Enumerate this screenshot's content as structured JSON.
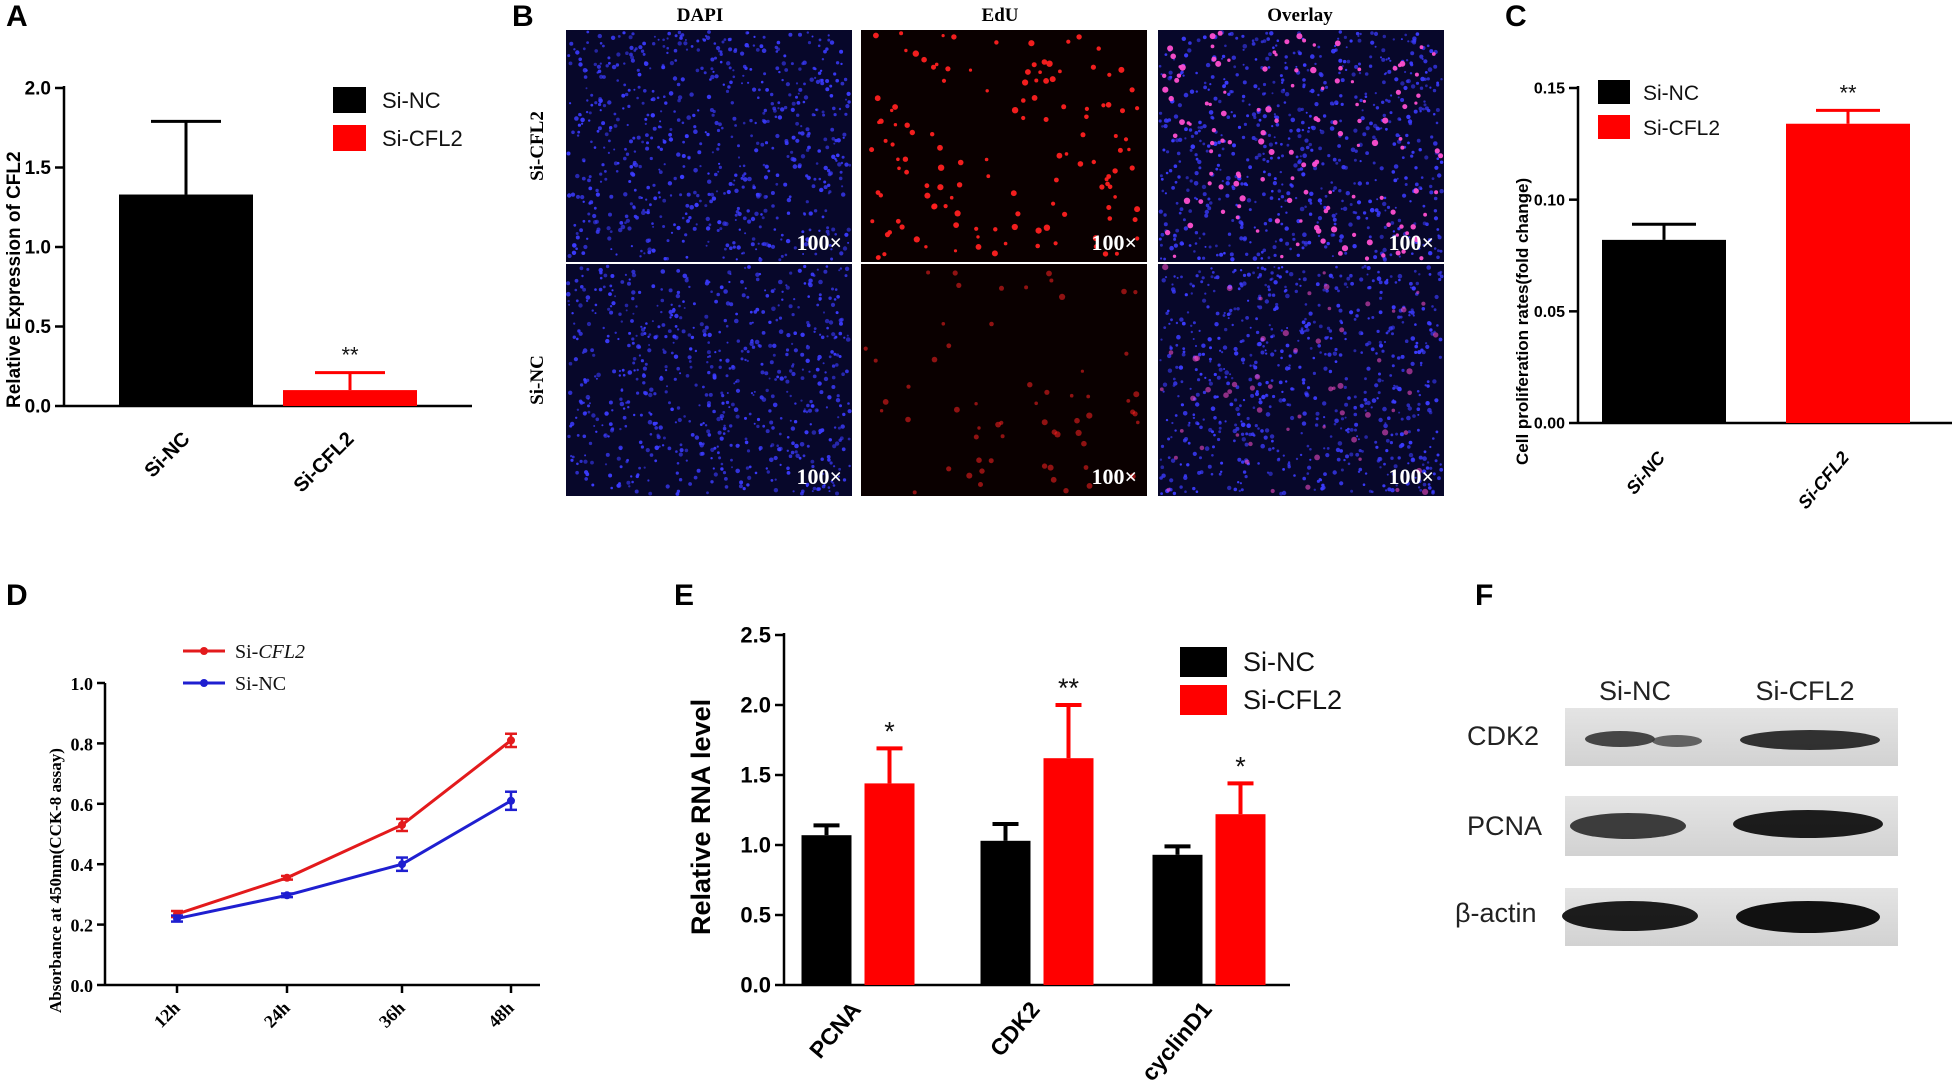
{
  "panels": {
    "A": "A",
    "B": "B",
    "C": "C",
    "D": "D",
    "E": "E",
    "F": "F"
  },
  "chart_data": [
    {
      "panel": "A",
      "type": "bar",
      "categories": [
        "Si-NC",
        "Si-CFL2"
      ],
      "values": [
        1.33,
        0.1
      ],
      "errors": [
        0.46,
        0.11
      ],
      "colors": [
        "#000000",
        "#ff0000"
      ],
      "significance": [
        "",
        "**"
      ],
      "ylabel": "Relative Expression of CFL2",
      "ylim": [
        0,
        2.0
      ],
      "yticks": [
        "0.0",
        "0.5",
        "1.0",
        "1.5",
        "2.0"
      ],
      "legend": [
        "Si-NC",
        "Si-CFL2"
      ]
    },
    {
      "panel": "C",
      "type": "bar",
      "categories": [
        "Si-NC",
        "Si-CFL2"
      ],
      "values": [
        0.082,
        0.134
      ],
      "errors": [
        0.007,
        0.006
      ],
      "colors": [
        "#000000",
        "#ff0000"
      ],
      "significance": [
        "",
        "**"
      ],
      "ylabel": "Cell proliferation rates(fold change)",
      "ylim": [
        0,
        0.15
      ],
      "yticks": [
        "0.00",
        "0.05",
        "0.10",
        "0.15"
      ],
      "legend": [
        "Si-NC",
        "Si-CFL2"
      ]
    },
    {
      "panel": "D",
      "type": "line",
      "x": [
        "12h",
        "24h",
        "36h",
        "48h"
      ],
      "series": [
        {
          "name": "Si-CFL2",
          "prefix": "Si-",
          "suffix": "CFL2",
          "color": "#e31a1c",
          "values": [
            0.235,
            0.355,
            0.53,
            0.81
          ],
          "errors": [
            0.01,
            0.006,
            0.02,
            0.022
          ]
        },
        {
          "name": "Si-NC",
          "prefix": "Si-",
          "suffix": "NC",
          "color": "#1f1fd0",
          "values": [
            0.22,
            0.297,
            0.4,
            0.61
          ],
          "errors": [
            0.01,
            0.006,
            0.022,
            0.03
          ]
        }
      ],
      "ylabel": "Absorbance at 450nm(CCK-8 assay)",
      "ylim": [
        0,
        1.0
      ],
      "yticks": [
        "0.0",
        "0.2",
        "0.4",
        "0.6",
        "0.8",
        "1.0"
      ]
    },
    {
      "panel": "E",
      "type": "bar",
      "categories": [
        "PCNA",
        "CDK2",
        "cyclinD1"
      ],
      "series": [
        {
          "name": "Si-NC",
          "color": "#000000",
          "values": [
            1.07,
            1.03,
            0.93
          ],
          "errors": [
            0.07,
            0.12,
            0.06
          ]
        },
        {
          "name": "Si-CFL2",
          "color": "#ff0000",
          "values": [
            1.44,
            1.62,
            1.22
          ],
          "errors": [
            0.25,
            0.38,
            0.22
          ]
        }
      ],
      "significance": [
        "*",
        "**",
        "*"
      ],
      "ylabel": "Relative RNA level",
      "ylim": [
        0,
        2.5
      ],
      "yticks": [
        "0.0",
        "0.5",
        "1.0",
        "1.5",
        "2.0",
        "2.5"
      ]
    }
  ],
  "microscopy": {
    "columns": [
      "DAPI",
      "EdU",
      "Overlay"
    ],
    "rows": [
      "Si-CFL2",
      "Si-NC"
    ],
    "magnification": "100×"
  },
  "western_blot": {
    "lanes": [
      "Si-NC",
      "Si-CFL2"
    ],
    "proteins": [
      "CDK2",
      "PCNA",
      "β-actin"
    ]
  }
}
